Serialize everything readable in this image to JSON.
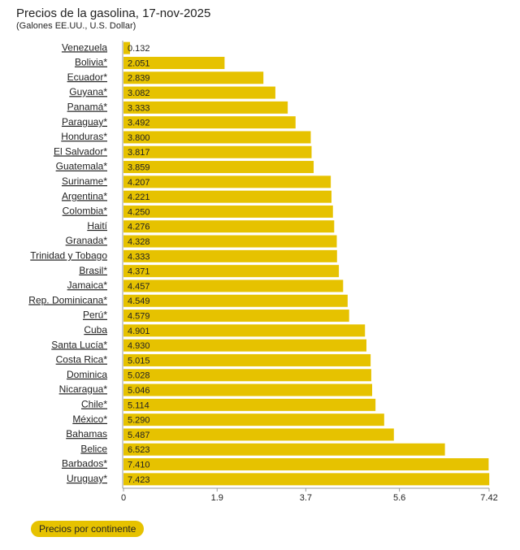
{
  "chart_data": {
    "type": "bar",
    "orientation": "horizontal",
    "title": "Precios de la gasolina, 17-nov-2025",
    "subtitle": "(Galones EE.UU., U.S. Dollar)",
    "categories": [
      "Venezuela",
      "Bolivia*",
      "Ecuador*",
      "Guyana*",
      "Panamá*",
      "Paraguay*",
      "Honduras*",
      "El Salvador*",
      "Guatemala*",
      "Suriname*",
      "Argentina*",
      "Colombia*",
      "Haití",
      "Granada*",
      "Trinidad y Tobago",
      "Brasil*",
      "Jamaica*",
      "Rep. Dominicana*",
      "Perú*",
      "Cuba",
      "Santa Lucía*",
      "Costa Rica*",
      "Dominica",
      "Nicaragua*",
      "Chile*",
      "México*",
      "Bahamas",
      "Belice",
      "Barbados*",
      "Uruguay*"
    ],
    "values": [
      0.132,
      2.051,
      2.839,
      3.082,
      3.333,
      3.492,
      3.8,
      3.817,
      3.859,
      4.207,
      4.221,
      4.25,
      4.276,
      4.328,
      4.333,
      4.371,
      4.457,
      4.549,
      4.579,
      4.901,
      4.93,
      5.015,
      5.028,
      5.046,
      5.114,
      5.29,
      5.487,
      6.523,
      7.41,
      7.423
    ],
    "value_labels": [
      "0.132",
      "2.051",
      "2.839",
      "3.082",
      "3.333",
      "3.492",
      "3.800",
      "3.817",
      "3.859",
      "4.207",
      "4.221",
      "4.250",
      "4.276",
      "4.328",
      "4.333",
      "4.371",
      "4.457",
      "4.549",
      "4.579",
      "4.901",
      "4.930",
      "5.015",
      "5.028",
      "5.046",
      "5.114",
      "5.290",
      "5.487",
      "6.523",
      "7.410",
      "7.423"
    ],
    "color": "#e6c200",
    "xlim": [
      0,
      7.42
    ],
    "xticks": [
      0,
      1.9,
      3.7,
      5.6,
      7.42
    ],
    "button": "Precios por continente"
  }
}
